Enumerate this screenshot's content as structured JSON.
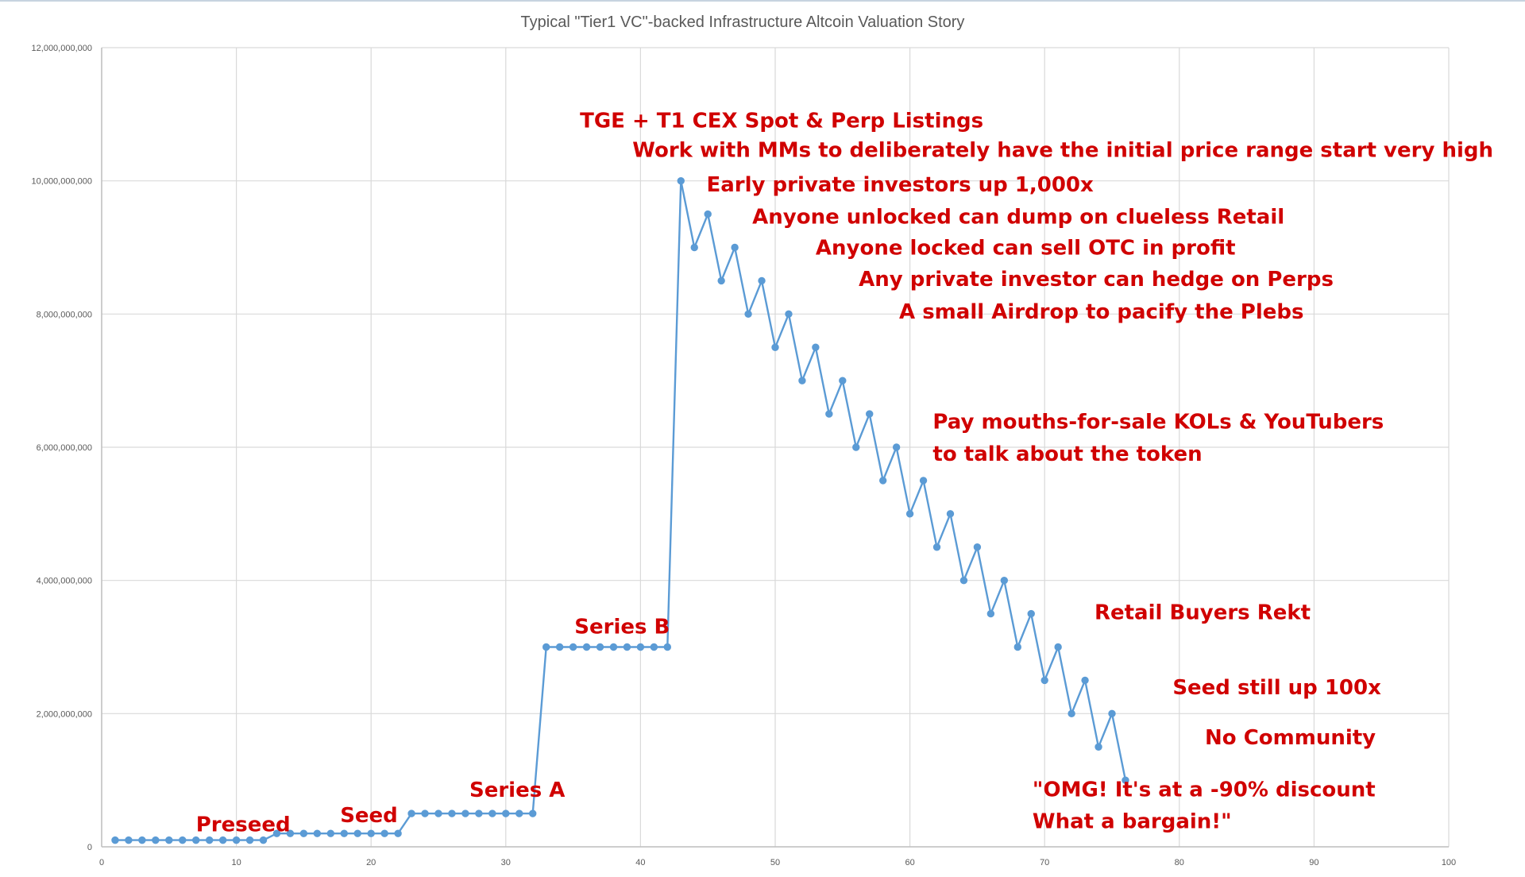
{
  "chart_data": {
    "type": "line",
    "title": "Typical \"Tier1 VC\"-backed Infrastructure Altcoin Valuation Story",
    "xlim": [
      0,
      100
    ],
    "ylim": [
      0,
      12000000000
    ],
    "x_ticks": [
      "0",
      "10",
      "20",
      "30",
      "40",
      "50",
      "60",
      "70",
      "80",
      "90",
      "100"
    ],
    "y_ticks": [
      "0",
      "2,000,000,000",
      "4,000,000,000",
      "6,000,000,000",
      "8,000,000,000",
      "10,000,000,000",
      "12,000,000,000"
    ],
    "grid": true,
    "legend": "none",
    "color": "#5b9bd5",
    "annotation_color": "#d00000",
    "series": [
      {
        "x": [
          1,
          2,
          3,
          4,
          5,
          6,
          7,
          8,
          9,
          10,
          11,
          12,
          13,
          14,
          15,
          16,
          17,
          18,
          19,
          20,
          21,
          22,
          23,
          24,
          25,
          26,
          27,
          28,
          29,
          30,
          31,
          32,
          33,
          34,
          35,
          36,
          37,
          38,
          39,
          40,
          41,
          42,
          43,
          44,
          45,
          46,
          47,
          48,
          49,
          50,
          51,
          52,
          53,
          54,
          55,
          56,
          57,
          58,
          59,
          60,
          61,
          62,
          63,
          64,
          65,
          66,
          67,
          68,
          69,
          70,
          71,
          72,
          73,
          74,
          75,
          76
        ],
        "values": [
          100000000,
          100000000,
          100000000,
          100000000,
          100000000,
          100000000,
          100000000,
          100000000,
          100000000,
          100000000,
          100000000,
          100000000,
          200000000,
          200000000,
          200000000,
          200000000,
          200000000,
          200000000,
          200000000,
          200000000,
          200000000,
          200000000,
          500000000,
          500000000,
          500000000,
          500000000,
          500000000,
          500000000,
          500000000,
          500000000,
          500000000,
          500000000,
          3000000000,
          3000000000,
          3000000000,
          3000000000,
          3000000000,
          3000000000,
          3000000000,
          3000000000,
          3000000000,
          3000000000,
          10000000000,
          9000000000,
          9500000000,
          8500000000,
          9000000000,
          8000000000,
          8500000000,
          7500000000,
          8000000000,
          7000000000,
          7500000000,
          6500000000,
          7000000000,
          6000000000,
          6500000000,
          5500000000,
          6000000000,
          5000000000,
          5500000000,
          4500000000,
          5000000000,
          4000000000,
          4500000000,
          3500000000,
          4000000000,
          3000000000,
          3500000000,
          2500000000,
          3000000000,
          2000000000,
          2500000000,
          1500000000,
          2000000000,
          1000000000
        ]
      }
    ],
    "annotations": [
      {
        "text": "Preseed",
        "x": 7,
        "y": 230000000
      },
      {
        "text": "Seed",
        "x": 17.7,
        "y": 370000000
      },
      {
        "text": "Series A",
        "x": 27.3,
        "y": 750000000
      },
      {
        "text": "Series B",
        "x": 35.1,
        "y": 3200000000
      },
      {
        "text": "TGE + T1 CEX Spot & Perp Listings",
        "x": 35.5,
        "y": 10800000000
      },
      {
        "text": "Work with MMs to deliberately have the initial price range start very high",
        "x": 39.4,
        "y": 10360000000
      },
      {
        "text": "Early private investors up 1,000x",
        "x": 44.9,
        "y": 9840000000
      },
      {
        "text": "Anyone unlocked can dump on clueless Retail",
        "x": 48.3,
        "y": 9360000000
      },
      {
        "text": "Anyone locked can sell OTC in profit",
        "x": 53,
        "y": 8890000000
      },
      {
        "text": "Any private investor can hedge on Perps",
        "x": 56.2,
        "y": 8420000000
      },
      {
        "text": "A small Airdrop to pacify the Plebs",
        "x": 59.2,
        "y": 7930000000
      },
      {
        "text": "Pay mouths-for-sale KOLs & YouTubers",
        "x": 61.7,
        "y": 6280000000
      },
      {
        "text": "to talk about the token",
        "x": 61.7,
        "y": 5800000000
      },
      {
        "text": "Retail Buyers Rekt",
        "x": 73.7,
        "y": 3420000000
      },
      {
        "text": "Seed still up 100x",
        "x": 79.5,
        "y": 2290000000
      },
      {
        "text": "No Community",
        "x": 81.9,
        "y": 1540000000
      },
      {
        "text": "\"OMG! It's at a -90% discount",
        "x": 69.1,
        "y": 760000000
      },
      {
        "text": "What a bargain!\"",
        "x": 69.1,
        "y": 280000000
      }
    ]
  }
}
